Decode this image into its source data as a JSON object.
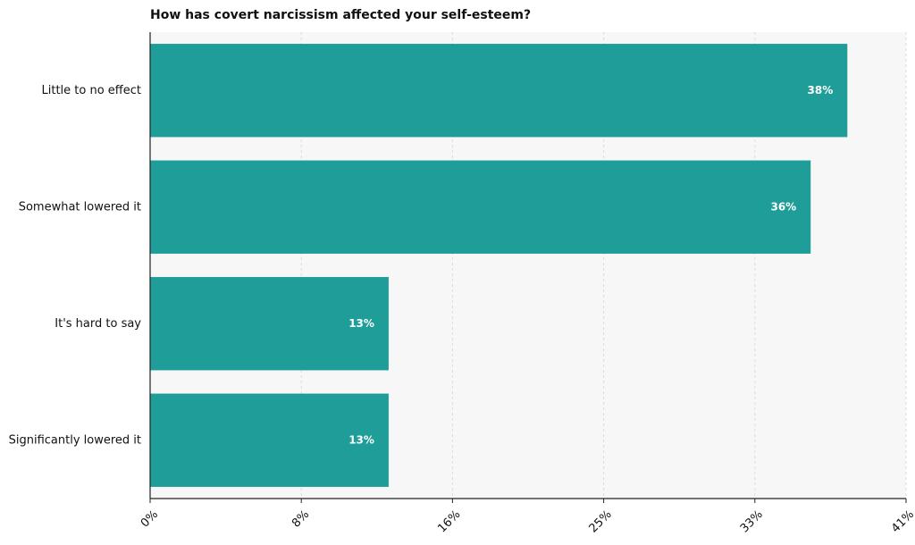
{
  "chart_data": {
    "type": "bar",
    "orientation": "horizontal",
    "title": "How has covert narcissism affected your self-esteem?",
    "xlabel": "",
    "ylabel": "",
    "categories": [
      "Little to no effect",
      "Somewhat lowered it",
      "It's hard to say",
      "Significantly lowered it"
    ],
    "values": [
      38,
      36,
      13,
      13
    ],
    "value_labels": [
      "38%",
      "36%",
      "13%",
      "13%"
    ],
    "xlim": [
      0,
      41.2
    ],
    "x_ticks": [
      0,
      8.24,
      16.48,
      24.72,
      32.96,
      41.2
    ],
    "x_tick_labels": [
      "0%",
      "8%",
      "16%",
      "25%",
      "33%",
      "41%"
    ],
    "grid": "vertical dashed",
    "legend": "none"
  },
  "colors": {
    "bar": "#1f9e99",
    "plot_background": "#f7f7f7",
    "grid": "#dcdcdc",
    "axis": "#222222"
  }
}
